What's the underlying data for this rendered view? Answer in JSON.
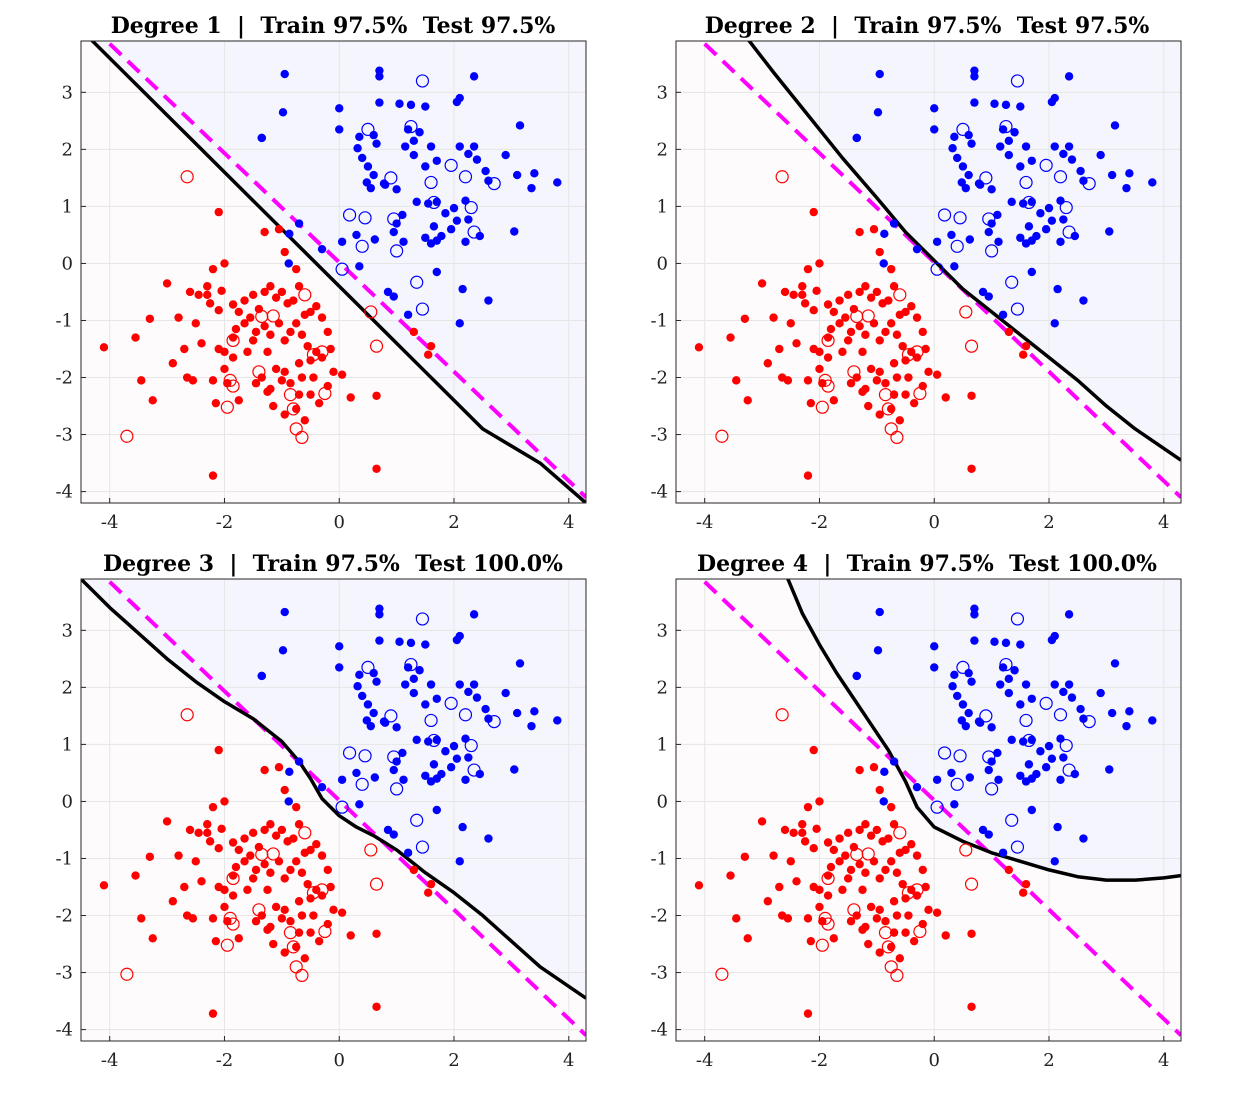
{
  "colors": {
    "class_a": "#0000ff",
    "class_b": "#ff0000",
    "region_a": "#f5f6fd",
    "region_b": "#fdfbfb",
    "boundary": "#000000",
    "reference": "#ff00ff",
    "grid": "#e6e6e6"
  },
  "chart_data": [
    {
      "type": "scatter",
      "title": "Degree 1  |  Train 97.5%  Test 97.5%",
      "degree": 1,
      "xlim": [
        -4.5,
        4.3
      ],
      "ylim": [
        -4.2,
        3.9
      ],
      "xticks": [
        -4,
        -2,
        0,
        2,
        4
      ],
      "yticks": [
        -4,
        -3,
        -2,
        -1,
        0,
        1,
        2,
        3
      ],
      "grid": true,
      "boundary": {
        "x": [
          -4.5,
          -3.5,
          -2.5,
          -1.5,
          -0.5,
          0.5,
          1.5,
          2.5,
          3.5,
          4.3
        ],
        "y": [
          4.1,
          3.1,
          2.1,
          1.1,
          0.1,
          -0.9,
          -1.9,
          -2.9,
          -3.5,
          -4.2
        ]
      },
      "reference": {
        "x": [
          -4.0,
          4.3
        ],
        "y": [
          3.85,
          -4.1
        ]
      }
    },
    {
      "type": "scatter",
      "title": "Degree 2  |  Train 97.5%  Test 97.5%",
      "degree": 2,
      "xlim": [
        -4.5,
        4.3
      ],
      "ylim": [
        -4.2,
        3.9
      ],
      "xticks": [
        -4,
        -2,
        0,
        2,
        4
      ],
      "yticks": [
        -4,
        -3,
        -2,
        -1,
        0,
        1,
        2,
        3
      ],
      "grid": true,
      "boundary": {
        "x": [
          -3.3,
          -2.8,
          -2.2,
          -1.6,
          -1.0,
          -0.5,
          0.0,
          0.5,
          1.0,
          1.5,
          2.0,
          2.5,
          3.0,
          3.5,
          4.3
        ],
        "y": [
          4.0,
          3.35,
          2.6,
          1.85,
          1.15,
          0.55,
          0.05,
          -0.45,
          -0.85,
          -1.25,
          -1.65,
          -2.05,
          -2.5,
          -2.9,
          -3.45
        ]
      },
      "reference": {
        "x": [
          -4.0,
          4.3
        ],
        "y": [
          3.85,
          -4.1
        ]
      }
    },
    {
      "type": "scatter",
      "title": "Degree 3  |  Train 97.5%  Test 100.0%",
      "degree": 3,
      "xlim": [
        -4.5,
        4.3
      ],
      "ylim": [
        -4.2,
        3.9
      ],
      "xticks": [
        -4,
        -2,
        0,
        2,
        4
      ],
      "yticks": [
        -4,
        -3,
        -2,
        -1,
        0,
        1,
        2,
        3
      ],
      "grid": true,
      "boundary": {
        "x": [
          -4.5,
          -4.0,
          -3.5,
          -3.0,
          -2.5,
          -2.0,
          -1.5,
          -1.0,
          -0.7,
          -0.5,
          -0.3,
          0.0,
          0.3,
          0.6,
          1.0,
          1.5,
          2.0,
          2.5,
          3.0,
          3.5,
          4.3
        ],
        "y": [
          3.9,
          3.4,
          2.95,
          2.5,
          2.1,
          1.75,
          1.45,
          1.05,
          0.7,
          0.4,
          0.05,
          -0.25,
          -0.45,
          -0.6,
          -0.85,
          -1.25,
          -1.6,
          -2.0,
          -2.45,
          -2.9,
          -3.45
        ]
      },
      "reference": {
        "x": [
          -4.0,
          4.3
        ],
        "y": [
          3.85,
          -4.1
        ]
      }
    },
    {
      "type": "scatter",
      "title": "Degree 4  |  Train 97.5%  Test 100.0%",
      "degree": 4,
      "xlim": [
        -4.5,
        4.3
      ],
      "ylim": [
        -4.2,
        3.9
      ],
      "xticks": [
        -4,
        -2,
        0,
        2,
        4
      ],
      "yticks": [
        -4,
        -3,
        -2,
        -1,
        0,
        1,
        2,
        3
      ],
      "grid": true,
      "boundary": {
        "x": [
          -2.55,
          -2.3,
          -2.0,
          -1.7,
          -1.4,
          -1.1,
          -0.8,
          -0.5,
          -0.3,
          0.0,
          0.5,
          1.0,
          1.5,
          2.0,
          2.5,
          3.0,
          3.5,
          4.0,
          4.3
        ],
        "y": [
          3.9,
          3.3,
          2.75,
          2.25,
          1.8,
          1.35,
          0.9,
          0.35,
          -0.1,
          -0.45,
          -0.7,
          -0.9,
          -1.05,
          -1.2,
          -1.32,
          -1.38,
          -1.38,
          -1.34,
          -1.3
        ]
      },
      "reference": {
        "x": [
          -4.0,
          4.3
        ],
        "y": [
          3.85,
          -4.1
        ]
      }
    }
  ],
  "points": {
    "class_a_train": [
      [
        -0.95,
        3.32
      ],
      [
        0.7,
        3.38
      ],
      [
        0.7,
        3.28
      ],
      [
        2.35,
        3.28
      ],
      [
        2.1,
        2.9
      ],
      [
        2.05,
        2.83
      ],
      [
        -1.35,
        2.2
      ],
      [
        -0.98,
        2.65
      ],
      [
        0.0,
        2.72
      ],
      [
        0.0,
        2.35
      ],
      [
        0.7,
        2.82
      ],
      [
        1.05,
        2.8
      ],
      [
        1.25,
        2.78
      ],
      [
        1.5,
        2.75
      ],
      [
        0.35,
        2.22
      ],
      [
        0.32,
        2.02
      ],
      [
        0.6,
        2.25
      ],
      [
        0.65,
        2.1
      ],
      [
        0.4,
        1.85
      ],
      [
        0.5,
        1.7
      ],
      [
        0.6,
        1.55
      ],
      [
        0.48,
        1.42
      ],
      [
        0.55,
        1.32
      ],
      [
        0.8,
        1.38
      ],
      [
        1.0,
        1.3
      ],
      [
        1.2,
        2.35
      ],
      [
        1.3,
        2.15
      ],
      [
        1.4,
        2.3
      ],
      [
        1.15,
        2.05
      ],
      [
        1.3,
        1.9
      ],
      [
        1.6,
        2.05
      ],
      [
        1.5,
        1.7
      ],
      [
        1.7,
        1.8
      ],
      [
        2.1,
        2.05
      ],
      [
        2.25,
        1.92
      ],
      [
        2.35,
        2.05
      ],
      [
        2.4,
        1.82
      ],
      [
        2.55,
        1.62
      ],
      [
        2.6,
        1.45
      ],
      [
        1.35,
        1.08
      ],
      [
        1.55,
        1.05
      ],
      [
        1.65,
        0.65
      ],
      [
        1.85,
        0.88
      ],
      [
        2.0,
        0.97
      ],
      [
        2.05,
        0.75
      ],
      [
        2.25,
        0.77
      ],
      [
        2.45,
        0.48
      ],
      [
        2.2,
        0.38
      ],
      [
        1.1,
        0.85
      ],
      [
        1.0,
        0.7
      ],
      [
        0.95,
        0.55
      ],
      [
        0.62,
        0.42
      ],
      [
        0.3,
        0.5
      ],
      [
        1.12,
        0.38
      ],
      [
        1.5,
        0.45
      ],
      [
        1.6,
        0.35
      ],
      [
        1.7,
        0.4
      ],
      [
        1.78,
        0.48
      ],
      [
        1.95,
        0.6
      ],
      [
        2.2,
        1.1
      ],
      [
        1.7,
        1.08
      ],
      [
        3.15,
        2.42
      ],
      [
        3.05,
        0.56
      ],
      [
        2.9,
        1.9
      ],
      [
        3.1,
        1.55
      ],
      [
        3.35,
        1.32
      ],
      [
        3.4,
        1.58
      ],
      [
        3.8,
        1.42
      ],
      [
        1.7,
        -0.15
      ],
      [
        2.1,
        -1.05
      ],
      [
        2.15,
        -0.45
      ],
      [
        2.6,
        -0.65
      ],
      [
        0.35,
        -0.05
      ],
      [
        0.85,
        -0.5
      ],
      [
        0.95,
        -0.58
      ],
      [
        1.2,
        -0.9
      ],
      [
        -0.3,
        0.25
      ],
      [
        0.05,
        0.38
      ],
      [
        -0.7,
        0.7
      ],
      [
        -0.87,
        0.52
      ],
      [
        -1.35,
        2.2
      ],
      [
        -0.88,
        0.0
      ],
      [
        0.78,
        1.4
      ]
    ],
    "class_a_test": [
      [
        1.45,
        3.2
      ],
      [
        0.5,
        2.35
      ],
      [
        1.25,
        2.4
      ],
      [
        0.9,
        1.5
      ],
      [
        1.6,
        1.42
      ],
      [
        1.95,
        1.72
      ],
      [
        2.2,
        1.52
      ],
      [
        2.7,
        1.4
      ],
      [
        0.18,
        0.85
      ],
      [
        0.45,
        0.8
      ],
      [
        0.95,
        0.78
      ],
      [
        1.65,
        1.07
      ],
      [
        2.3,
        0.98
      ],
      [
        0.4,
        0.3
      ],
      [
        1.0,
        0.22
      ],
      [
        2.35,
        0.55
      ],
      [
        0.05,
        -0.1
      ],
      [
        1.35,
        -0.33
      ],
      [
        1.45,
        -0.8
      ]
    ],
    "class_b_train": [
      [
        -4.1,
        -1.47
      ],
      [
        -3.55,
        -1.3
      ],
      [
        -3.3,
        -0.97
      ],
      [
        -3.0,
        -0.35
      ],
      [
        -2.6,
        -0.5
      ],
      [
        -2.45,
        -0.55
      ],
      [
        -2.5,
        -1.05
      ],
      [
        -2.4,
        -1.4
      ],
      [
        -2.3,
        -0.4
      ],
      [
        -2.25,
        -0.7
      ],
      [
        -2.2,
        -0.1
      ],
      [
        -2.1,
        -0.82
      ],
      [
        -2.05,
        -0.48
      ],
      [
        -2.0,
        0.0
      ],
      [
        -1.85,
        -0.72
      ],
      [
        -1.75,
        -0.85
      ],
      [
        -1.65,
        -0.65
      ],
      [
        -1.5,
        -0.55
      ],
      [
        -1.4,
        -0.8
      ],
      [
        -1.3,
        -0.5
      ],
      [
        -1.2,
        -0.4
      ],
      [
        -1.1,
        -0.6
      ],
      [
        -1.0,
        -0.5
      ],
      [
        -0.9,
        -0.7
      ],
      [
        -0.8,
        -0.65
      ],
      [
        -0.7,
        -0.4
      ],
      [
        -0.6,
        -0.9
      ],
      [
        -0.5,
        -0.85
      ],
      [
        -0.4,
        -0.75
      ],
      [
        -0.3,
        -0.95
      ],
      [
        -0.2,
        -1.2
      ],
      [
        -0.15,
        -1.5
      ],
      [
        -1.85,
        -1.3
      ],
      [
        -1.8,
        -1.15
      ],
      [
        -1.65,
        -1.05
      ],
      [
        -1.5,
        -1.35
      ],
      [
        -1.45,
        -1.2
      ],
      [
        -1.3,
        -1.1
      ],
      [
        -1.2,
        -1.25
      ],
      [
        -1.05,
        -1.05
      ],
      [
        -0.95,
        -1.35
      ],
      [
        -0.85,
        -1.2
      ],
      [
        -0.75,
        -1.05
      ],
      [
        -0.65,
        -1.25
      ],
      [
        -0.55,
        -1.45
      ],
      [
        -0.4,
        -1.55
      ],
      [
        -0.3,
        -1.65
      ],
      [
        -0.5,
        -1.7
      ],
      [
        -2.2,
        -2.05
      ],
      [
        -2.0,
        -1.85
      ],
      [
        -1.85,
        -1.65
      ],
      [
        -1.6,
        -1.55
      ],
      [
        -1.45,
        -2.1
      ],
      [
        -1.35,
        -2.0
      ],
      [
        -1.25,
        -2.25
      ],
      [
        -1.1,
        -1.85
      ],
      [
        -1.0,
        -2.05
      ],
      [
        -0.95,
        -1.9
      ],
      [
        -0.85,
        -2.1
      ],
      [
        -0.7,
        -1.75
      ],
      [
        -0.65,
        -2.0
      ],
      [
        -0.5,
        -2.3
      ],
      [
        -0.35,
        -2.45
      ],
      [
        -0.2,
        -2.15
      ],
      [
        -0.1,
        -1.9
      ],
      [
        0.05,
        -1.95
      ],
      [
        0.2,
        -2.35
      ],
      [
        -1.15,
        -2.5
      ],
      [
        -0.95,
        -2.65
      ],
      [
        -0.75,
        -2.55
      ],
      [
        -0.6,
        -2.75
      ],
      [
        -1.2,
        -2.2
      ],
      [
        -2.65,
        -2.0
      ],
      [
        -2.0,
        -1.55
      ],
      [
        -2.15,
        -2.45
      ],
      [
        -1.95,
        -2.1
      ],
      [
        -3.25,
        -2.4
      ],
      [
        -2.2,
        -3.72
      ],
      [
        0.65,
        -3.6
      ],
      [
        0.65,
        -2.32
      ],
      [
        1.6,
        -1.45
      ],
      [
        1.55,
        -1.6
      ],
      [
        1.3,
        -1.2
      ],
      [
        -2.1,
        0.9
      ],
      [
        -1.3,
        0.55
      ],
      [
        -1.05,
        0.6
      ],
      [
        -0.95,
        0.2
      ],
      [
        -0.75,
        -0.1
      ],
      [
        -2.3,
        -0.55
      ],
      [
        -1.55,
        -0.95
      ],
      [
        -2.7,
        -1.5
      ],
      [
        -2.55,
        -2.05
      ],
      [
        -2.1,
        -1.5
      ],
      [
        -1.75,
        -2.4
      ],
      [
        -2.8,
        -0.95
      ],
      [
        -3.45,
        -2.05
      ],
      [
        -2.9,
        -1.75
      ],
      [
        -0.45,
        -2.0
      ],
      [
        -0.7,
        -2.3
      ],
      [
        -1.25,
        -1.55
      ]
    ],
    "class_b_test": [
      [
        -2.65,
        1.52
      ],
      [
        -3.7,
        -3.03
      ],
      [
        -1.35,
        -0.93
      ],
      [
        -1.15,
        -0.92
      ],
      [
        -0.6,
        -0.55
      ],
      [
        -1.85,
        -1.35
      ],
      [
        0.55,
        -0.85
      ],
      [
        -0.45,
        -1.6
      ],
      [
        -0.3,
        -1.55
      ],
      [
        -1.9,
        -2.05
      ],
      [
        -1.85,
        -2.15
      ],
      [
        -1.4,
        -1.9
      ],
      [
        -0.85,
        -2.3
      ],
      [
        -0.8,
        -2.55
      ],
      [
        -0.25,
        -2.28
      ],
      [
        0.65,
        -1.45
      ],
      [
        -0.75,
        -2.9
      ],
      [
        -0.65,
        -3.05
      ],
      [
        -1.95,
        -2.52
      ]
    ]
  }
}
